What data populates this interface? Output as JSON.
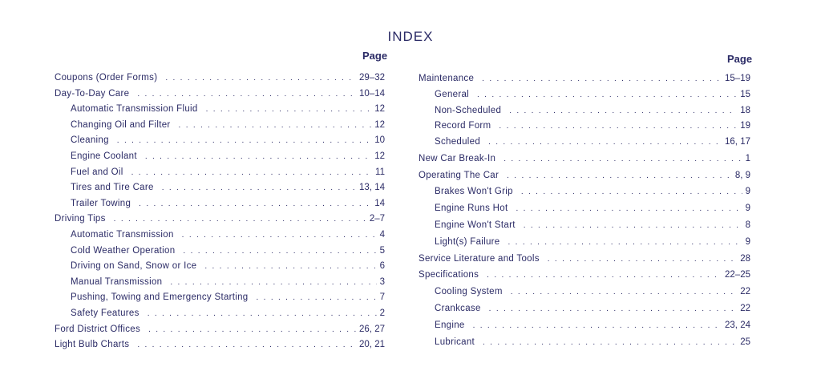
{
  "title": "INDEX",
  "page_header": "Page",
  "left": [
    {
      "label": "Coupons (Order Forms)",
      "page": "29–32",
      "sub": false
    },
    {
      "label": "Day-To-Day Care",
      "page": "10–14",
      "sub": false
    },
    {
      "label": "Automatic Transmission Fluid",
      "page": "12",
      "sub": true
    },
    {
      "label": "Changing Oil and Filter",
      "page": "12",
      "sub": true
    },
    {
      "label": "Cleaning",
      "page": "10",
      "sub": true
    },
    {
      "label": "Engine Coolant",
      "page": "12",
      "sub": true
    },
    {
      "label": "Fuel and Oil",
      "page": "11",
      "sub": true
    },
    {
      "label": "Tires and Tire Care",
      "page": "13, 14",
      "sub": true
    },
    {
      "label": "Trailer Towing",
      "page": "14",
      "sub": true
    },
    {
      "label": "Driving Tips",
      "page": "2–7",
      "sub": false
    },
    {
      "label": "Automatic Transmission",
      "page": "4",
      "sub": true
    },
    {
      "label": "Cold Weather Operation",
      "page": "5",
      "sub": true
    },
    {
      "label": "Driving on Sand, Snow or Ice",
      "page": "6",
      "sub": true
    },
    {
      "label": "Manual Transmission",
      "page": "3",
      "sub": true
    },
    {
      "label": "Pushing, Towing and Emergency Starting",
      "page": "7",
      "sub": true
    },
    {
      "label": "Safety Features",
      "page": "2",
      "sub": true
    },
    {
      "label": "Ford District Offices",
      "page": "26, 27",
      "sub": false
    },
    {
      "label": "Light Bulb Charts",
      "page": "20, 21",
      "sub": false
    }
  ],
  "right": [
    {
      "label": "Maintenance",
      "page": "15–19",
      "sub": false
    },
    {
      "label": "General",
      "page": "15",
      "sub": true
    },
    {
      "label": "Non-Scheduled",
      "page": "18",
      "sub": true
    },
    {
      "label": "Record Form",
      "page": "19",
      "sub": true
    },
    {
      "label": "Scheduled",
      "page": "16, 17",
      "sub": true
    },
    {
      "label": "New Car Break-In",
      "page": "1",
      "sub": false
    },
    {
      "label": "Operating The Car",
      "page": "8, 9",
      "sub": false
    },
    {
      "label": "Brakes Won't Grip",
      "page": "9",
      "sub": true
    },
    {
      "label": "Engine Runs Hot",
      "page": "9",
      "sub": true
    },
    {
      "label": "Engine Won't Start",
      "page": "8",
      "sub": true
    },
    {
      "label": "Light(s) Failure",
      "page": "9",
      "sub": true
    },
    {
      "label": "Service Literature and Tools",
      "page": "28",
      "sub": false
    },
    {
      "label": "Specifications",
      "page": "22–25",
      "sub": false
    },
    {
      "label": "Cooling System",
      "page": "22",
      "sub": true
    },
    {
      "label": "Crankcase",
      "page": "22",
      "sub": true
    },
    {
      "label": "Engine",
      "page": "23, 24",
      "sub": true
    },
    {
      "label": "Lubricant",
      "page": "25",
      "sub": true
    }
  ]
}
